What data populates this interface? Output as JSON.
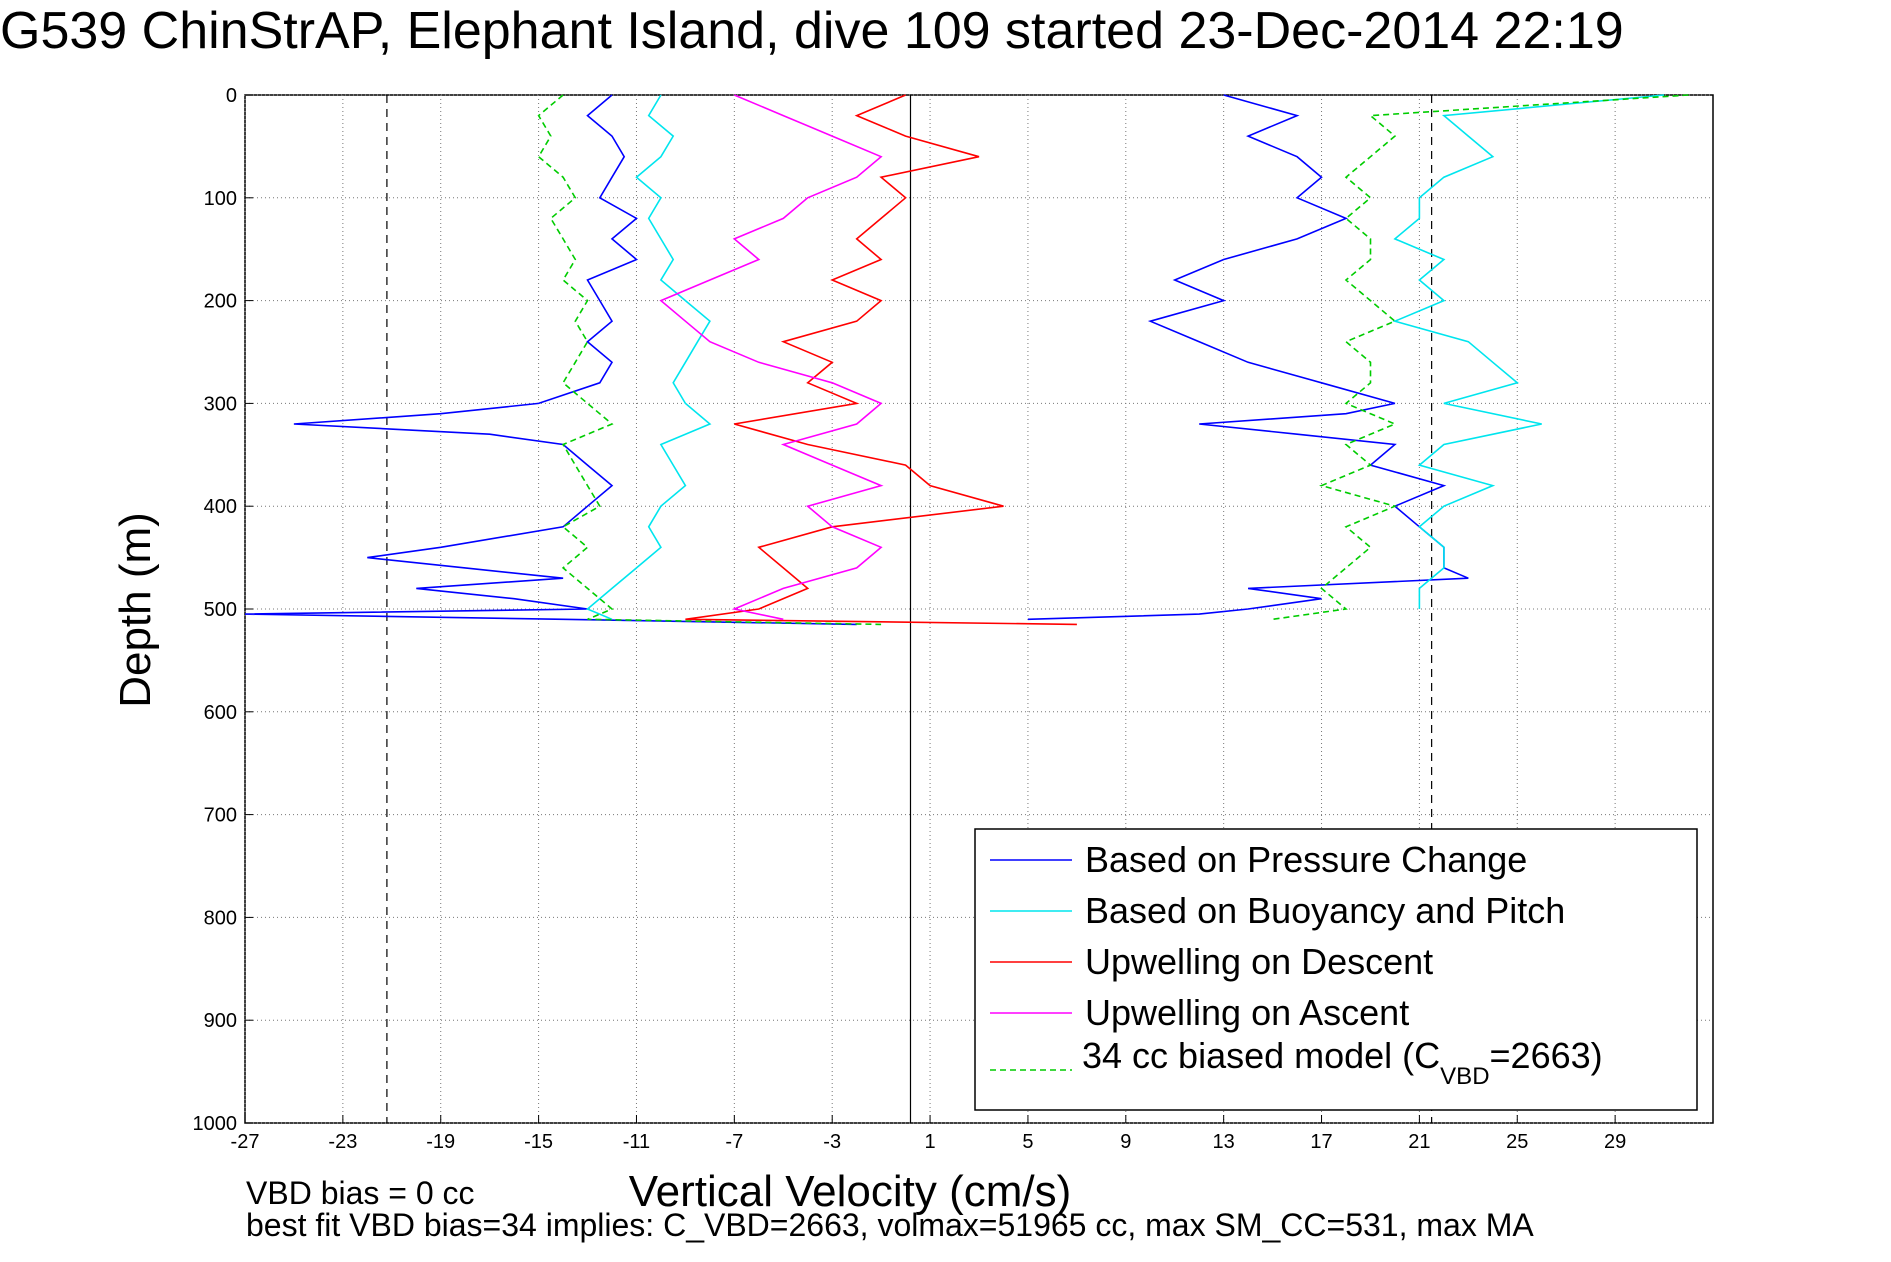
{
  "chart_data": {
    "type": "line",
    "title": "G539 ChinStrAP, Elephant Island, dive 109 started 23-Dec-2014 22:19",
    "xlabel": "Vertical Velocity (cm/s)",
    "ylabel": "Depth (m)",
    "xlim": [
      -27,
      33
    ],
    "ylim": [
      0,
      1000
    ],
    "y_reversed": true,
    "grid": true,
    "xticks": [
      -27,
      -23,
      -19,
      -15,
      -11,
      -7,
      -3,
      1,
      5,
      9,
      13,
      17,
      21,
      25,
      29
    ],
    "yticks": [
      0,
      100,
      200,
      300,
      400,
      500,
      600,
      700,
      800,
      900,
      1000
    ],
    "xtick_labels": [
      "-27",
      "-23",
      "-19",
      "-15",
      "-11",
      "-7",
      "-3",
      "1",
      "5",
      "9",
      "13",
      "17",
      "21",
      "25",
      "29"
    ],
    "ytick_labels": [
      "0",
      "100",
      "200",
      "300",
      "400",
      "500",
      "600",
      "700",
      "800",
      "900",
      "1000"
    ],
    "legend_position": "bottom-right",
    "reference_lines": [
      {
        "x": -21.2,
        "style": "dashed"
      },
      {
        "x": 0.2,
        "style": "solid"
      },
      {
        "x": 21.5,
        "style": "dashed"
      }
    ],
    "series": [
      {
        "name": "Based on Pressure Change",
        "color": "#0000ff",
        "segments": [
          {
            "depth": [
              0,
              20,
              40,
              60,
              80,
              100,
              120,
              140,
              160,
              180,
              200,
              220,
              240,
              260,
              280,
              300,
              310,
              320,
              330,
              340,
              360,
              380,
              400,
              420,
              440,
              450,
              460,
              470,
              480,
              490,
              500,
              505,
              510,
              515
            ],
            "x": [
              -12,
              -13,
              -12,
              -11.5,
              -12,
              -12.5,
              -11,
              -12,
              -11,
              -13,
              -12.5,
              -12,
              -13,
              -12,
              -12.5,
              -15,
              -19,
              -25,
              -17,
              -14,
              -13,
              -12,
              -13,
              -14,
              -19,
              -22,
              -18,
              -14,
              -20,
              -16,
              -13,
              -27,
              -14,
              -2
            ]
          },
          {
            "depth": [
              0,
              20,
              40,
              60,
              80,
              100,
              120,
              140,
              160,
              180,
              200,
              220,
              240,
              260,
              280,
              300,
              310,
              320,
              330,
              340,
              360,
              380,
              400,
              420,
              440,
              460,
              470,
              480,
              490,
              500,
              505,
              510
            ],
            "x": [
              13,
              16,
              14,
              16,
              17,
              16,
              18,
              16,
              13,
              11,
              13,
              10,
              12,
              14,
              17,
              20,
              18,
              12,
              16,
              20,
              19,
              22,
              20,
              21,
              22,
              22,
              23,
              14,
              17,
              14,
              12,
              5
            ]
          }
        ]
      },
      {
        "name": "Based on Buoyancy and Pitch",
        "color": "#00e5ee",
        "segments": [
          {
            "depth": [
              0,
              20,
              40,
              60,
              80,
              100,
              120,
              140,
              160,
              180,
              200,
              220,
              240,
              260,
              280,
              300,
              320,
              340,
              360,
              380,
              400,
              420,
              440,
              460,
              480,
              500,
              510
            ],
            "x": [
              -10,
              -10.5,
              -9.5,
              -10,
              -11,
              -10,
              -10.5,
              -10,
              -9.5,
              -10,
              -9,
              -8,
              -8.5,
              -9,
              -9.5,
              -9,
              -8,
              -10,
              -9.5,
              -9,
              -10,
              -10.5,
              -10,
              -11,
              -12,
              -13,
              -12
            ]
          },
          {
            "depth": [
              0,
              20,
              40,
              60,
              80,
              100,
              120,
              140,
              160,
              180,
              200,
              220,
              240,
              260,
              280,
              300,
              320,
              340,
              360,
              380,
              400,
              420,
              440,
              460,
              480,
              500
            ],
            "x": [
              31,
              22,
              23,
              24,
              22,
              21,
              21,
              20,
              22,
              21,
              22,
              20,
              23,
              24,
              25,
              22,
              26,
              22,
              21,
              24,
              22,
              21,
              22,
              22,
              21,
              21
            ]
          }
        ]
      },
      {
        "name": "Upwelling on Descent",
        "color": "#ff0000",
        "segments": [
          {
            "depth": [
              0,
              20,
              40,
              60,
              80,
              100,
              120,
              140,
              160,
              180,
              200,
              220,
              240,
              260,
              280,
              300,
              320,
              340,
              360,
              380,
              400,
              420,
              440,
              460,
              480,
              500,
              510,
              515
            ],
            "x": [
              0,
              -2,
              0,
              3,
              -1,
              0,
              -1,
              -2,
              -1,
              -3,
              -1,
              -2,
              -5,
              -3,
              -4,
              -2,
              -7,
              -4,
              0,
              1,
              4,
              -3,
              -6,
              -5,
              -4,
              -6,
              -9,
              7
            ]
          }
        ]
      },
      {
        "name": "Upwelling on Ascent",
        "color": "#ff00ff",
        "segments": [
          {
            "depth": [
              0,
              20,
              40,
              60,
              80,
              100,
              120,
              140,
              160,
              180,
              200,
              220,
              240,
              260,
              280,
              300,
              320,
              340,
              360,
              380,
              400,
              420,
              440,
              460,
              480,
              500,
              510
            ],
            "x": [
              -7,
              -5,
              -3,
              -1,
              -2,
              -4,
              -5,
              -7,
              -6,
              -8,
              -10,
              -9,
              -8,
              -6,
              -3,
              -1,
              -2,
              -5,
              -3,
              -1,
              -4,
              -3,
              -1,
              -2,
              -5,
              -7,
              -5
            ]
          }
        ]
      },
      {
        "name": "34 cc biased model (C_VBD=2663)",
        "color": "#00cc00",
        "dashed": true,
        "segments": [
          {
            "depth": [
              0,
              20,
              40,
              60,
              80,
              100,
              120,
              140,
              160,
              180,
              200,
              220,
              240,
              260,
              280,
              300,
              320,
              340,
              360,
              380,
              400,
              420,
              440,
              460,
              480,
              500,
              510,
              515
            ],
            "x": [
              -14,
              -15,
              -14.5,
              -15,
              -14,
              -13.5,
              -14.5,
              -14,
              -13.5,
              -14,
              -13,
              -13.5,
              -13,
              -13.5,
              -14,
              -13,
              -12,
              -14,
              -13.5,
              -13,
              -12.5,
              -14,
              -13,
              -14,
              -13,
              -12,
              -13,
              -1
            ]
          },
          {
            "depth": [
              0,
              20,
              40,
              60,
              80,
              100,
              120,
              140,
              160,
              180,
              200,
              220,
              240,
              260,
              280,
              300,
              320,
              340,
              360,
              380,
              400,
              420,
              440,
              460,
              480,
              500,
              510
            ],
            "x": [
              32,
              19,
              20,
              19,
              18,
              19,
              18,
              19,
              19,
              18,
              19,
              20,
              18,
              19,
              19,
              18,
              20,
              18,
              19,
              17,
              20,
              18,
              19,
              18,
              17,
              18,
              15
            ]
          }
        ]
      }
    ],
    "legend_entries": [
      "Based on Pressure Change",
      "Based on Buoyancy and Pitch",
      "Upwelling on Descent",
      "Upwelling on Ascent",
      "34 cc biased model (C",
      "VBD",
      "=2663)"
    ],
    "footnotes": [
      "VBD bias = 0 cc",
      "best fit VBD bias=34 implies: C_VBD=2663, volmax=51965 cc, max SM_CC=531, max MA"
    ]
  }
}
